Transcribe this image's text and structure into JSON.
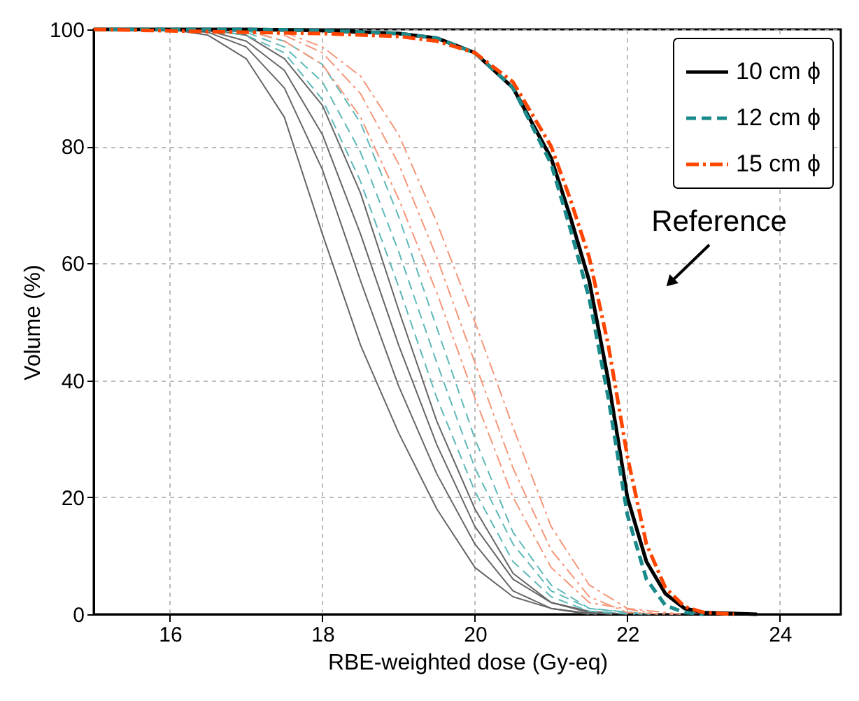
{
  "chart_data": {
    "type": "line",
    "xlabel": "RBE-weighted dose (Gy-eq)",
    "ylabel": "Volume (%)",
    "xlim": [
      15,
      24.8
    ],
    "xticks": [
      16,
      18,
      20,
      22,
      24
    ],
    "ylim": [
      0,
      100
    ],
    "yticks": [
      0,
      20,
      40,
      60,
      80,
      100
    ],
    "grid": true,
    "legend": "top right",
    "marker": "none",
    "annotations": [
      "Reference"
    ],
    "series": [
      {
        "name": "10 cm ϕ",
        "color": "#000000",
        "line_style": "solid",
        "x": [
          15,
          17,
          18,
          19,
          19.5,
          20,
          20.5,
          21,
          21.25,
          21.5,
          21.75,
          22,
          22.25,
          22.5,
          22.75,
          23,
          23.7
        ],
        "values": [
          100,
          100,
          99.8,
          99.3,
          98.5,
          96,
          90,
          78,
          68,
          57,
          40,
          20,
          9,
          3.5,
          1,
          0.3,
          0
        ]
      },
      {
        "name": "12 cm ϕ",
        "color": "#1a8a8a",
        "line_style": "dashed",
        "x": [
          15,
          17,
          18,
          19,
          19.5,
          20,
          20.5,
          21,
          21.25,
          21.5,
          21.75,
          22,
          22.25,
          22.5,
          22.75,
          23
        ],
        "values": [
          100,
          100,
          99.8,
          99.3,
          98.5,
          96,
          90,
          77,
          66,
          54,
          37,
          17,
          6,
          1.5,
          0.3,
          0
        ]
      },
      {
        "name": "15 cm ϕ",
        "color": "#ff4500",
        "line_style": "dashdot",
        "x": [
          15,
          17,
          18,
          19,
          19.5,
          20,
          20.5,
          21,
          21.25,
          21.5,
          21.75,
          22,
          22.25,
          22.5,
          22.75,
          23,
          23.4
        ],
        "values": [
          100,
          99.5,
          99.3,
          98.8,
          98,
          96,
          91,
          80,
          71,
          61,
          46,
          27,
          12,
          4.5,
          1.3,
          0.3,
          0
        ]
      },
      {
        "color": "#666666",
        "line_style": "solid",
        "x": [
          15,
          16,
          16.5,
          17,
          17.5,
          18,
          18.5,
          19,
          19.5,
          20,
          20.5,
          21,
          21.5
        ],
        "values": [
          100,
          100,
          99,
          95,
          85,
          65,
          46,
          31,
          18,
          8,
          3,
          1,
          0
        ]
      },
      {
        "color": "#666666",
        "line_style": "solid",
        "x": [
          15,
          16,
          16.5,
          17,
          17.5,
          18,
          18.5,
          19,
          19.5,
          20,
          20.5,
          21,
          21.6
        ],
        "values": [
          100,
          100,
          99.5,
          97,
          90,
          76,
          57,
          39,
          24,
          12,
          4,
          1,
          0
        ]
      },
      {
        "color": "#666666",
        "line_style": "solid",
        "x": [
          15,
          16,
          16.5,
          17,
          17.5,
          18,
          18.5,
          19,
          19.5,
          20,
          20.5,
          21,
          21.5,
          21.8
        ],
        "values": [
          100,
          100,
          99.8,
          98,
          93,
          82,
          65,
          46,
          29,
          15,
          6,
          2,
          0.3,
          0
        ]
      },
      {
        "color": "#666666",
        "line_style": "solid",
        "x": [
          15,
          16,
          16.5,
          17,
          17.5,
          18,
          18.5,
          19,
          19.5,
          20,
          20.5,
          21,
          21.5,
          22
        ],
        "values": [
          100,
          100,
          99.9,
          99,
          95,
          87,
          72,
          52,
          33,
          18,
          7,
          2,
          0.5,
          0
        ]
      },
      {
        "color": "#5fb8b8",
        "line_style": "dashed",
        "x": [
          15,
          16,
          16.5,
          17,
          17.5,
          18,
          18.5,
          19,
          19.5,
          20,
          20.5,
          21,
          21.5,
          22.1
        ],
        "values": [
          100,
          100,
          99.9,
          99,
          96,
          88,
          74,
          56,
          37,
          21,
          9,
          3,
          0.5,
          0
        ]
      },
      {
        "color": "#5fb8b8",
        "line_style": "dashed",
        "x": [
          15,
          16,
          16.5,
          17,
          17.5,
          18,
          18.5,
          19,
          19.5,
          20,
          20.5,
          21,
          21.5,
          22.2
        ],
        "values": [
          100,
          100,
          100,
          99.5,
          97,
          91,
          79,
          62,
          43,
          25,
          12,
          4,
          1,
          0
        ]
      },
      {
        "color": "#5fb8b8",
        "line_style": "dashed",
        "x": [
          15,
          16,
          16.5,
          17,
          17.5,
          18,
          18.5,
          19,
          19.5,
          20,
          20.5,
          21,
          21.5,
          22.3
        ],
        "values": [
          100,
          100,
          100,
          99.8,
          98,
          94,
          84,
          68,
          49,
          30,
          14,
          5,
          1,
          0
        ]
      },
      {
        "color": "#f5977a",
        "line_style": "dashdot",
        "x": [
          15,
          16,
          16.5,
          17,
          17.5,
          18,
          18.5,
          19,
          19.5,
          20,
          20.5,
          21,
          21.5,
          22.4
        ],
        "values": [
          100,
          100,
          100,
          99.8,
          98,
          94,
          85,
          71,
          55,
          37,
          20,
          8,
          2,
          0
        ]
      },
      {
        "color": "#f5977a",
        "line_style": "dashdot",
        "x": [
          15,
          16,
          16.5,
          17,
          17.5,
          18,
          18.5,
          19,
          19.5,
          20,
          20.5,
          21,
          21.5,
          22,
          22.6
        ],
        "values": [
          100,
          100,
          100,
          99.9,
          99,
          96,
          89,
          77,
          61,
          43,
          25,
          11,
          3,
          0.3,
          0
        ]
      },
      {
        "color": "#f5977a",
        "line_style": "dashdot",
        "x": [
          15,
          16,
          16.5,
          17,
          17.5,
          18,
          18.5,
          19,
          19.5,
          20,
          20.5,
          21,
          21.5,
          22,
          22.7
        ],
        "values": [
          100,
          100,
          100,
          100,
          99.5,
          97,
          92,
          82,
          67,
          50,
          32,
          15,
          5,
          1,
          0
        ]
      }
    ]
  }
}
